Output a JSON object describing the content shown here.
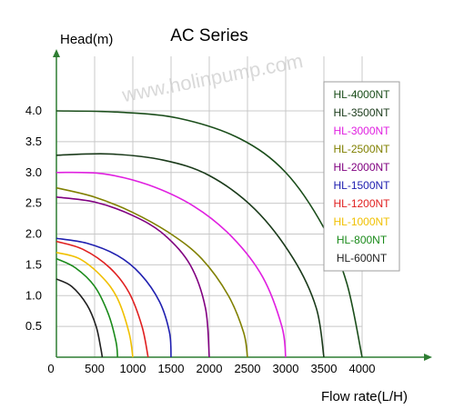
{
  "chart_data": {
    "type": "line",
    "title": "AC Series",
    "xlabel": "Flow rate(L/H)",
    "ylabel": "Head(m)",
    "watermark": "www.holinpump.com",
    "xlim": [
      0,
      4800
    ],
    "ylim": [
      0,
      4.8
    ],
    "grid": true,
    "x_ticks": [
      0,
      500,
      1000,
      1500,
      2000,
      2500,
      3000,
      3500,
      4000
    ],
    "x_tick_labels": [
      "0",
      "500",
      "1000",
      "1500",
      "2000",
      "2500",
      "3000",
      "3500",
      "4000"
    ],
    "y_ticks": [
      0.5,
      1.0,
      1.5,
      2.0,
      2.5,
      3.0,
      3.5,
      4.0
    ],
    "y_tick_labels": [
      "0.5",
      "1.0",
      "1.5",
      "2.0",
      "2.5",
      "3.0",
      "3.5",
      "4.0"
    ],
    "legend_position": "top-right",
    "series": [
      {
        "name": "HL-4000NT",
        "color": "#1a4d1a",
        "values": [
          [
            0,
            4.0
          ],
          [
            800,
            3.98
          ],
          [
            1600,
            3.88
          ],
          [
            2400,
            3.55
          ],
          [
            3000,
            3.0
          ],
          [
            3500,
            2.1
          ],
          [
            3800,
            1.2
          ],
          [
            4000,
            0
          ]
        ]
      },
      {
        "name": "HL-3500NT",
        "color": "#1a3a1a",
        "values": [
          [
            0,
            3.28
          ],
          [
            700,
            3.3
          ],
          [
            1400,
            3.2
          ],
          [
            2000,
            2.95
          ],
          [
            2600,
            2.4
          ],
          [
            3100,
            1.6
          ],
          [
            3400,
            0.8
          ],
          [
            3500,
            0
          ]
        ]
      },
      {
        "name": "HL-3000NT",
        "color": "#e020e0",
        "values": [
          [
            0,
            3.0
          ],
          [
            600,
            2.98
          ],
          [
            1200,
            2.8
          ],
          [
            1800,
            2.45
          ],
          [
            2300,
            1.95
          ],
          [
            2700,
            1.3
          ],
          [
            2950,
            0.5
          ],
          [
            3000,
            0
          ]
        ]
      },
      {
        "name": "HL-2500NT",
        "color": "#808000",
        "values": [
          [
            0,
            2.75
          ],
          [
            500,
            2.6
          ],
          [
            1000,
            2.35
          ],
          [
            1500,
            2.0
          ],
          [
            1900,
            1.6
          ],
          [
            2250,
            1.0
          ],
          [
            2450,
            0.4
          ],
          [
            2500,
            0
          ]
        ]
      },
      {
        "name": "HL-2000NT",
        "color": "#800080",
        "values": [
          [
            0,
            2.6
          ],
          [
            500,
            2.52
          ],
          [
            1000,
            2.3
          ],
          [
            1400,
            2.0
          ],
          [
            1750,
            1.5
          ],
          [
            1950,
            0.8
          ],
          [
            2000,
            0
          ]
        ]
      },
      {
        "name": "HL-1500NT",
        "color": "#2020b0",
        "values": [
          [
            0,
            1.93
          ],
          [
            400,
            1.85
          ],
          [
            800,
            1.65
          ],
          [
            1100,
            1.35
          ],
          [
            1350,
            0.9
          ],
          [
            1480,
            0.4
          ],
          [
            1500,
            0
          ]
        ]
      },
      {
        "name": "HL-1200NT",
        "color": "#e02020",
        "values": [
          [
            0,
            1.88
          ],
          [
            350,
            1.75
          ],
          [
            700,
            1.45
          ],
          [
            950,
            1.05
          ],
          [
            1120,
            0.5
          ],
          [
            1200,
            0
          ]
        ]
      },
      {
        "name": "HL-1000NT",
        "color": "#f0c000",
        "values": [
          [
            0,
            1.7
          ],
          [
            300,
            1.6
          ],
          [
            600,
            1.3
          ],
          [
            800,
            0.95
          ],
          [
            950,
            0.4
          ],
          [
            1000,
            0
          ]
        ]
      },
      {
        "name": "HL-800NT",
        "color": "#1a8a1a",
        "values": [
          [
            0,
            1.6
          ],
          [
            250,
            1.45
          ],
          [
            500,
            1.15
          ],
          [
            680,
            0.7
          ],
          [
            780,
            0.25
          ],
          [
            800,
            0
          ]
        ]
      },
      {
        "name": "HL-600NT",
        "color": "#202020",
        "values": [
          [
            0,
            1.27
          ],
          [
            200,
            1.15
          ],
          [
            400,
            0.85
          ],
          [
            520,
            0.5
          ],
          [
            580,
            0.15
          ],
          [
            600,
            0
          ]
        ]
      }
    ]
  }
}
